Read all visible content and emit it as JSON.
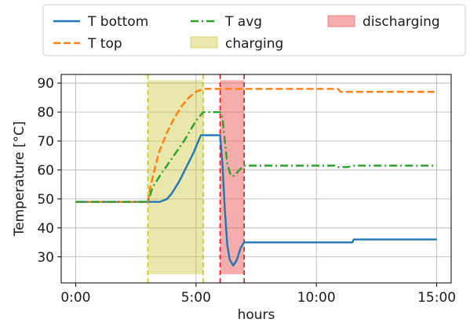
{
  "chart_data": {
    "type": "line",
    "xlabel": "hours",
    "ylabel": "Temperature [°C]",
    "xlim": [
      -0.6,
      15.6
    ],
    "ylim": [
      21,
      93
    ],
    "x_ticks": [
      0,
      5,
      10,
      15
    ],
    "x_tick_labels": [
      "0:00",
      "5:00",
      "10:00",
      "15:00"
    ],
    "y_ticks": [
      30,
      40,
      50,
      60,
      70,
      80,
      90
    ],
    "y_tick_labels": [
      "30",
      "40",
      "50",
      "60",
      "70",
      "80",
      "90"
    ],
    "grid": true,
    "legend_position": "top, above plot",
    "series": [
      {
        "name": "T bottom",
        "color": "#1f77b4",
        "style": "solid",
        "x": [
          0,
          3.0,
          3.5,
          3.8,
          4.0,
          4.3,
          4.6,
          4.9,
          5.2,
          5.3,
          5.6,
          5.9,
          6.0,
          6.1,
          6.2,
          6.3,
          6.4,
          6.55,
          6.7,
          6.85,
          7.0,
          8.0,
          10.0,
          11.5,
          11.55,
          15.0
        ],
        "y": [
          49,
          49,
          49,
          50,
          52,
          56,
          61,
          66,
          72,
          72,
          72,
          72,
          72,
          62,
          46,
          34,
          29,
          27,
          29,
          33,
          35,
          35,
          35,
          35,
          36,
          36
        ]
      },
      {
        "name": "T top",
        "color": "#ff7f0e",
        "style": "dashed",
        "x": [
          0,
          3.0,
          3.1,
          3.3,
          3.5,
          3.8,
          4.1,
          4.4,
          4.7,
          5.0,
          5.3,
          5.9,
          6.0,
          7.0,
          10.0,
          10.9,
          11.0,
          15.0
        ],
        "y": [
          49,
          49,
          54,
          61,
          67,
          73,
          78,
          82,
          85,
          87,
          88,
          88,
          88,
          88,
          88,
          88,
          87,
          87
        ]
      },
      {
        "name": "T avg",
        "color": "#2ca02c",
        "style": "dashdot",
        "x": [
          0,
          3.0,
          3.2,
          3.5,
          4.0,
          4.5,
          5.0,
          5.3,
          5.9,
          6.0,
          6.1,
          6.2,
          6.3,
          6.45,
          6.6,
          6.8,
          7.0,
          8.0,
          10.0,
          10.8,
          10.9,
          11.3,
          11.5,
          15.0
        ],
        "y": [
          49,
          49,
          54,
          58,
          64,
          70,
          77,
          80,
          80,
          80,
          78,
          70,
          62,
          58,
          58,
          60,
          61.5,
          61.5,
          61.5,
          61.5,
          61,
          61,
          61.5,
          61.5
        ]
      }
    ],
    "spans": [
      {
        "name": "charging",
        "x0": 3.0,
        "x1": 5.3,
        "y0": 24,
        "y1": 91,
        "fill": "#c8c42f",
        "line_color": "#c9c21a"
      },
      {
        "name": "discharging",
        "x0": 6.0,
        "x1": 7.0,
        "y0": 24,
        "y1": 91,
        "fill": "#ef5b5b",
        "line_color": "#e0151a"
      }
    ]
  },
  "legend": {
    "items": [
      {
        "label": "T bottom",
        "kind": "line",
        "color": "#1f77b4",
        "style": "solid"
      },
      {
        "label": "T top",
        "kind": "line",
        "color": "#ff7f0e",
        "style": "dashed"
      },
      {
        "label": "T avg",
        "kind": "line",
        "color": "#2ca02c",
        "style": "dashdot"
      },
      {
        "label": "charging",
        "kind": "patch",
        "color": "#c8c42f"
      },
      {
        "label": "discharging",
        "kind": "patch",
        "color": "#ef5b5b"
      }
    ]
  }
}
